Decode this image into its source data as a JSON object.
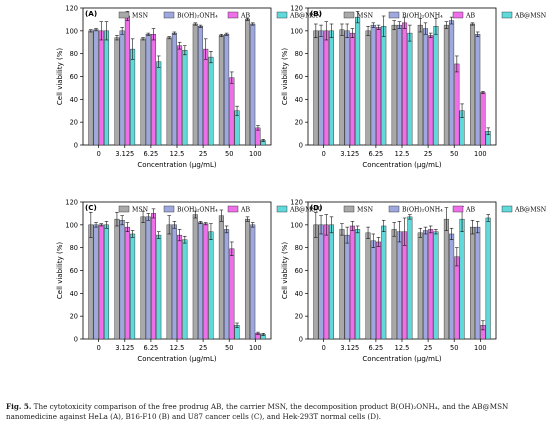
{
  "caption": {
    "label": "Fig. 5.",
    "text": "The cytotoxicity comparison of the free prodrug AB, the carrier MSN, the decomposition product B(OH)₂ONH₄, and the AB@MSN nanomedicine against HeLa (A), B16-F10 (B) and U87 cancer cells (C), and Hek-293T normal cells (D)."
  },
  "series_colors": {
    "MSN": "#a9a9a9",
    "B(OH)2ONH4": "#9ea8de",
    "AB": "#ef6ee9",
    "AB@MSN": "#5fd9d9"
  },
  "chart_data": [
    {
      "panel": "(A)",
      "type": "bar",
      "xlabel": "Concentration (μg/mL)",
      "ylabel": "Cell viability (%)",
      "ylim": [
        0,
        120
      ],
      "yticks": [
        0,
        20,
        40,
        60,
        80,
        100,
        120
      ],
      "categories": [
        "0",
        "3.125",
        "6.25",
        "12.5",
        "25",
        "50",
        "100"
      ],
      "legend": [
        "MSN",
        "B(OH)₂ONH₄",
        "AB",
        "AB@MSN"
      ],
      "error_bars": true,
      "series": [
        {
          "name": "MSN",
          "values": [
            100,
            94,
            93,
            94,
            106,
            96,
            110
          ],
          "errors": [
            1,
            2,
            1,
            1,
            1,
            1,
            1
          ]
        },
        {
          "name": "B(OH)₂ONH₄",
          "values": [
            101,
            100,
            97,
            98,
            104,
            97,
            106
          ],
          "errors": [
            1,
            3,
            1,
            1,
            1,
            1,
            1
          ]
        },
        {
          "name": "AB",
          "values": [
            100,
            113,
            97,
            87,
            84,
            59,
            15
          ],
          "errors": [
            8,
            4,
            5,
            3,
            9,
            5,
            2
          ]
        },
        {
          "name": "AB@MSN",
          "values": [
            100,
            84,
            73,
            83,
            77,
            30,
            4
          ],
          "errors": [
            8,
            9,
            5,
            4,
            5,
            4,
            1
          ]
        }
      ]
    },
    {
      "panel": "(B)",
      "type": "bar",
      "xlabel": "Concentration (μg/mL)",
      "ylabel": "Cell viability (%)",
      "ylim": [
        0,
        120
      ],
      "yticks": [
        0,
        20,
        40,
        60,
        80,
        100,
        120
      ],
      "categories": [
        "0",
        "3.125",
        "6.25",
        "12.5",
        "25",
        "50",
        "100"
      ],
      "legend": [
        "MSN",
        "B(OH)₂ONH₄",
        "AB",
        "AB@MSN"
      ],
      "error_bars": true,
      "series": [
        {
          "name": "MSN",
          "values": [
            100,
            101,
            100,
            105,
            105,
            105,
            106
          ],
          "errors": [
            6,
            5,
            4,
            4,
            6,
            3,
            1
          ]
        },
        {
          "name": "B(OH)₂ONH₄",
          "values": [
            100,
            100,
            105,
            105,
            102,
            109,
            97
          ],
          "errors": [
            5,
            6,
            2,
            3,
            5,
            3,
            2
          ]
        },
        {
          "name": "AB",
          "values": [
            100,
            98,
            103,
            107,
            96,
            71,
            46
          ],
          "errors": [
            8,
            4,
            2,
            5,
            2,
            7,
            1
          ]
        },
        {
          "name": "AB@MSN",
          "values": [
            100,
            112,
            104,
            98,
            104,
            30,
            12
          ],
          "errors": [
            6,
            5,
            9,
            7,
            7,
            6,
            3
          ]
        }
      ]
    },
    {
      "panel": "(C)",
      "type": "bar",
      "xlabel": "Concentration (μg/mL)",
      "ylabel": "Cell viability (%)",
      "ylim": [
        0,
        120
      ],
      "yticks": [
        0,
        20,
        40,
        60,
        80,
        100,
        120
      ],
      "categories": [
        "0",
        "3.125",
        "6.25",
        "12.5",
        "25",
        "50",
        "100"
      ],
      "legend": [
        "MSN",
        "B(OH)₂ONH₄",
        "AB",
        "AB@MSN"
      ],
      "error_bars": true,
      "series": [
        {
          "name": "MSN",
          "values": [
            100,
            105,
            107,
            100,
            109,
            108,
            105
          ],
          "errors": [
            11,
            6,
            5,
            8,
            3,
            5,
            2
          ]
        },
        {
          "name": "B(OH)₂ONH₄",
          "values": [
            100,
            104,
            107,
            100,
            102,
            96,
            100
          ],
          "errors": [
            2,
            4,
            3,
            3,
            1,
            3,
            2
          ]
        },
        {
          "name": "AB",
          "values": [
            100,
            98,
            110,
            91,
            101,
            79,
            5
          ],
          "errors": [
            1,
            4,
            4,
            5,
            1,
            6,
            1
          ]
        },
        {
          "name": "AB@MSN",
          "values": [
            100,
            92,
            91,
            87,
            94,
            12,
            4
          ],
          "errors": [
            3,
            3,
            3,
            3,
            7,
            2,
            1
          ]
        }
      ]
    },
    {
      "panel": "(D)",
      "type": "bar",
      "xlabel": "Concentration (μg/mL)",
      "ylabel": "Cell viability (%)",
      "ylim": [
        0,
        120
      ],
      "yticks": [
        0,
        20,
        40,
        60,
        80,
        100,
        120
      ],
      "categories": [
        "0",
        "3.125",
        "6.25",
        "12.5",
        "25",
        "50",
        "100"
      ],
      "legend": [
        "MSN",
        "B(OH)₂ONH₄",
        "AB",
        "AB@MSN"
      ],
      "error_bars": true,
      "series": [
        {
          "name": "MSN",
          "values": [
            100,
            96,
            93,
            96,
            93,
            105,
            98
          ],
          "errors": [
            11,
            5,
            5,
            6,
            4,
            10,
            6
          ]
        },
        {
          "name": "B(OH)₂ONH₄",
          "values": [
            100,
            91,
            86,
            94,
            95,
            92,
            98
          ],
          "errors": [
            8,
            7,
            6,
            9,
            3,
            5,
            5
          ]
        },
        {
          "name": "AB",
          "values": [
            100,
            99,
            85,
            94,
            96,
            72,
            12
          ],
          "errors": [
            9,
            4,
            4,
            12,
            3,
            8,
            4
          ]
        },
        {
          "name": "AB@MSN",
          "values": [
            100,
            96,
            99,
            107,
            94,
            105,
            106
          ],
          "errors": [
            7,
            3,
            5,
            2,
            2,
            11,
            3
          ]
        }
      ]
    }
  ]
}
